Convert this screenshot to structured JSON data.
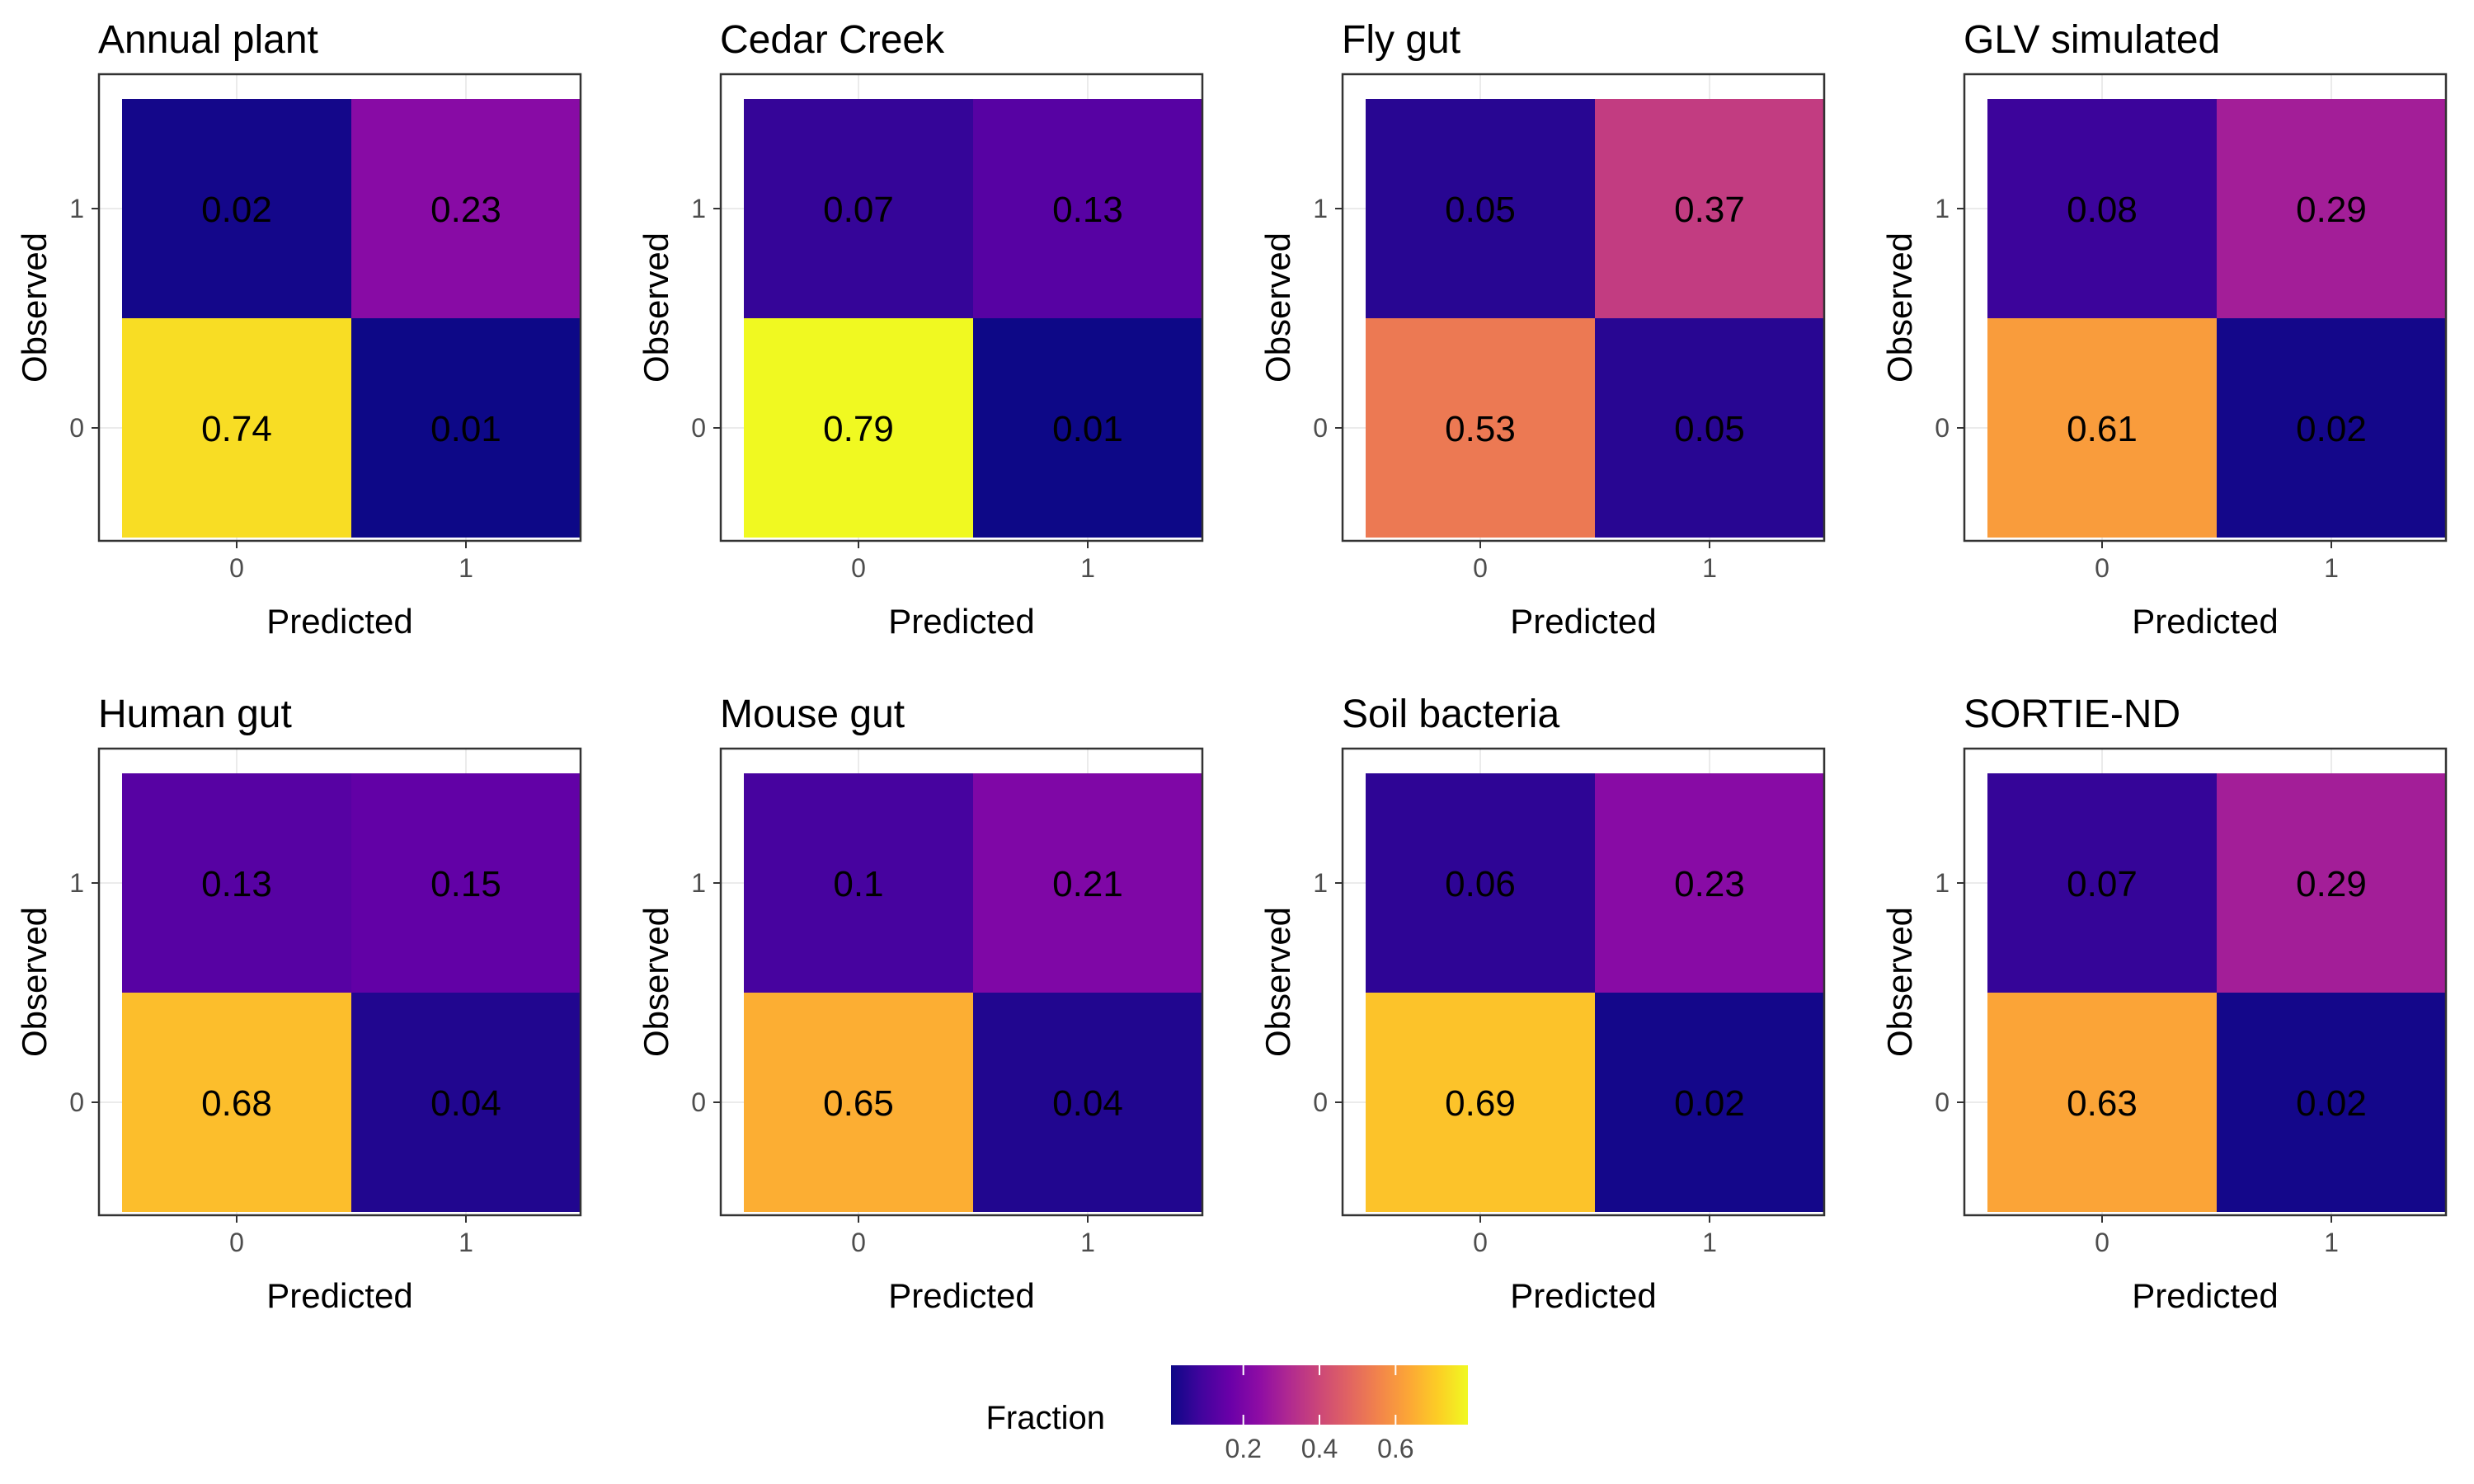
{
  "chart_data": [
    {
      "type": "heatmap",
      "title": "Annual plant",
      "xlabel": "Predicted",
      "ylabel": "Observed",
      "x_categories": [
        "0",
        "1"
      ],
      "y_categories": [
        "0",
        "1"
      ],
      "cells": [
        {
          "predicted": "0",
          "observed": "0",
          "value": 0.74
        },
        {
          "predicted": "1",
          "observed": "0",
          "value": 0.01
        },
        {
          "predicted": "0",
          "observed": "1",
          "value": 0.02
        },
        {
          "predicted": "1",
          "observed": "1",
          "value": 0.23
        }
      ]
    },
    {
      "type": "heatmap",
      "title": "Cedar Creek",
      "xlabel": "Predicted",
      "ylabel": "Observed",
      "x_categories": [
        "0",
        "1"
      ],
      "y_categories": [
        "0",
        "1"
      ],
      "cells": [
        {
          "predicted": "0",
          "observed": "0",
          "value": 0.79
        },
        {
          "predicted": "1",
          "observed": "0",
          "value": 0.01
        },
        {
          "predicted": "0",
          "observed": "1",
          "value": 0.07
        },
        {
          "predicted": "1",
          "observed": "1",
          "value": 0.13
        }
      ]
    },
    {
      "type": "heatmap",
      "title": "Fly gut",
      "xlabel": "Predicted",
      "ylabel": "Observed",
      "x_categories": [
        "0",
        "1"
      ],
      "y_categories": [
        "0",
        "1"
      ],
      "cells": [
        {
          "predicted": "0",
          "observed": "0",
          "value": 0.53
        },
        {
          "predicted": "1",
          "observed": "0",
          "value": 0.05
        },
        {
          "predicted": "0",
          "observed": "1",
          "value": 0.05
        },
        {
          "predicted": "1",
          "observed": "1",
          "value": 0.37
        }
      ]
    },
    {
      "type": "heatmap",
      "title": "GLV simulated",
      "xlabel": "Predicted",
      "ylabel": "Observed",
      "x_categories": [
        "0",
        "1"
      ],
      "y_categories": [
        "0",
        "1"
      ],
      "cells": [
        {
          "predicted": "0",
          "observed": "0",
          "value": 0.61
        },
        {
          "predicted": "1",
          "observed": "0",
          "value": 0.02
        },
        {
          "predicted": "0",
          "observed": "1",
          "value": 0.08
        },
        {
          "predicted": "1",
          "observed": "1",
          "value": 0.29
        }
      ]
    },
    {
      "type": "heatmap",
      "title": "Human gut",
      "xlabel": "Predicted",
      "ylabel": "Observed",
      "x_categories": [
        "0",
        "1"
      ],
      "y_categories": [
        "0",
        "1"
      ],
      "cells": [
        {
          "predicted": "0",
          "observed": "0",
          "value": 0.68
        },
        {
          "predicted": "1",
          "observed": "0",
          "value": 0.04
        },
        {
          "predicted": "0",
          "observed": "1",
          "value": 0.13
        },
        {
          "predicted": "1",
          "observed": "1",
          "value": 0.15
        }
      ]
    },
    {
      "type": "heatmap",
      "title": "Mouse gut",
      "xlabel": "Predicted",
      "ylabel": "Observed",
      "x_categories": [
        "0",
        "1"
      ],
      "y_categories": [
        "0",
        "1"
      ],
      "cells": [
        {
          "predicted": "0",
          "observed": "0",
          "value": 0.65
        },
        {
          "predicted": "1",
          "observed": "0",
          "value": 0.04
        },
        {
          "predicted": "0",
          "observed": "1",
          "value": 0.1
        },
        {
          "predicted": "1",
          "observed": "1",
          "value": 0.21
        }
      ]
    },
    {
      "type": "heatmap",
      "title": "Soil bacteria",
      "xlabel": "Predicted",
      "ylabel": "Observed",
      "x_categories": [
        "0",
        "1"
      ],
      "y_categories": [
        "0",
        "1"
      ],
      "cells": [
        {
          "predicted": "0",
          "observed": "0",
          "value": 0.69
        },
        {
          "predicted": "1",
          "observed": "0",
          "value": 0.02
        },
        {
          "predicted": "0",
          "observed": "1",
          "value": 0.06
        },
        {
          "predicted": "1",
          "observed": "1",
          "value": 0.23
        }
      ]
    },
    {
      "type": "heatmap",
      "title": "SORTIE-ND",
      "xlabel": "Predicted",
      "ylabel": "Observed",
      "x_categories": [
        "0",
        "1"
      ],
      "y_categories": [
        "0",
        "1"
      ],
      "cells": [
        {
          "predicted": "0",
          "observed": "0",
          "value": 0.63
        },
        {
          "predicted": "1",
          "observed": "0",
          "value": 0.02
        },
        {
          "predicted": "0",
          "observed": "1",
          "value": 0.07
        },
        {
          "predicted": "1",
          "observed": "1",
          "value": 0.29
        }
      ]
    }
  ],
  "legend": {
    "title": "Fraction",
    "ticks": [
      0.2,
      0.4,
      0.6
    ],
    "tick_labels": [
      "0.2",
      "0.4",
      "0.6"
    ],
    "range": [
      0.01,
      0.79
    ],
    "colormap": "plasma",
    "placement": "bottom-center"
  },
  "colors": {
    "panel_border": "#333333",
    "grid": "#ebebeb",
    "plasma_stops": [
      "#0d0887",
      "#41049d",
      "#6a00a8",
      "#8f0da4",
      "#b12a90",
      "#cc4778",
      "#e16462",
      "#f2844b",
      "#fca636",
      "#fcce25",
      "#f0f921"
    ]
  }
}
